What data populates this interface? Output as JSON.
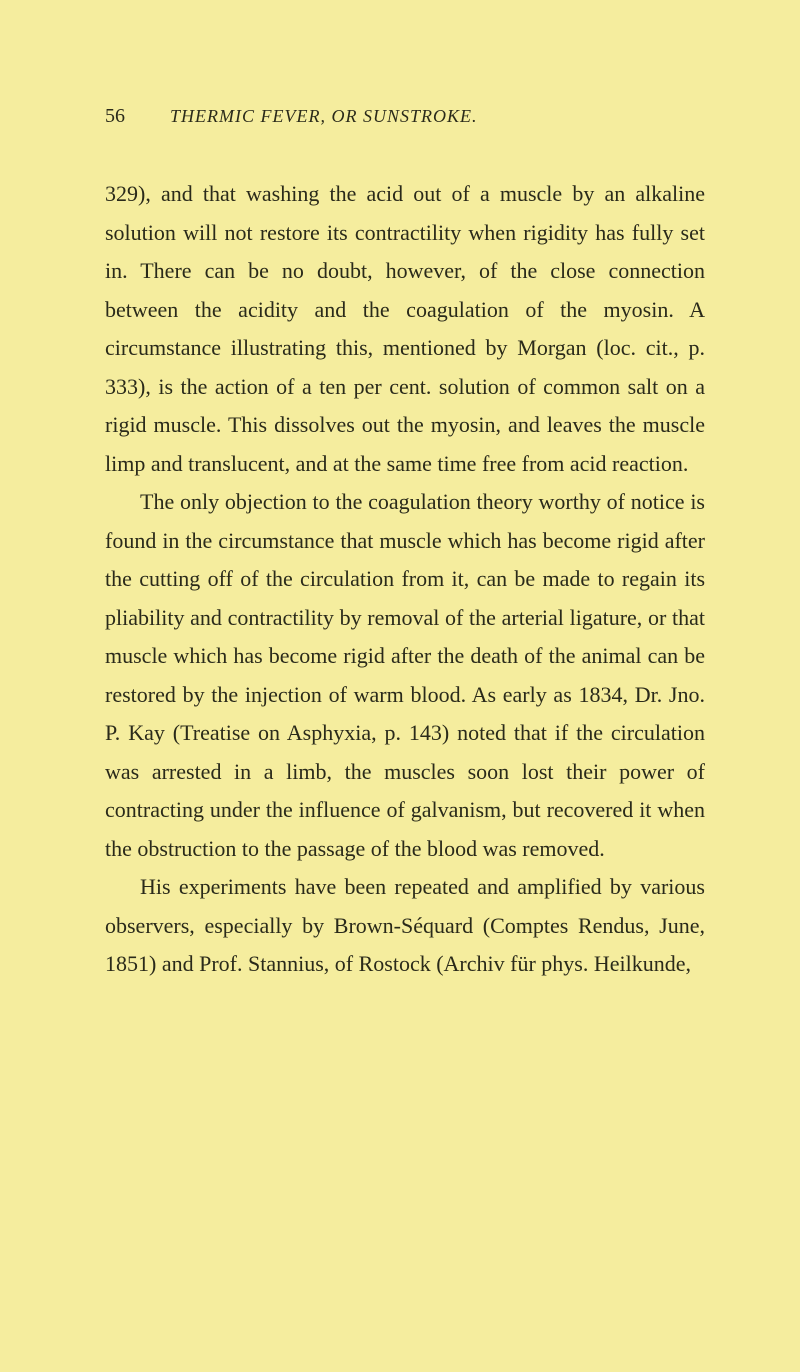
{
  "page": {
    "number": "56",
    "header": "THERMIC FEVER, OR SUNSTROKE."
  },
  "paragraphs": {
    "p1": "329), and that washing the acid out of a muscle by an alkaline solution will not restore its contractility when rigidity has fully set in. There can be no doubt, however, of the close connection between the acidity and the coagulation of the myosin. A circumstance illustrating this, mentioned by Morgan (loc. cit., p. 333), is the action of a ten per cent. solution of common salt on a rigid muscle. This dissolves out the myosin, and leaves the muscle limp and translucent, and at the same time free from acid reaction.",
    "p2": "The only objection to the coagulation theory worthy of notice is found in the circumstance that muscle which has become rigid after the cutting off of the circulation from it, can be made to regain its pliability and contractility by removal of the arterial ligature, or that muscle which has become rigid after the death of the animal can be restored by the injection of warm blood. As early as 1834, Dr. Jno. P. Kay (Treatise on Asphyxia, p. 143) noted that if the circulation was arrested in a limb, the muscles soon lost their power of contracting under the influence of galvanism, but recovered it when the obstruction to the passage of the blood was removed.",
    "p3": "His experiments have been repeated and amplified by various observers, especially by Brown-Séquard (Comptes Rendus, June, 1851) and Prof. Stannius, of Rostock (Archiv für phys. Heilkunde,"
  }
}
